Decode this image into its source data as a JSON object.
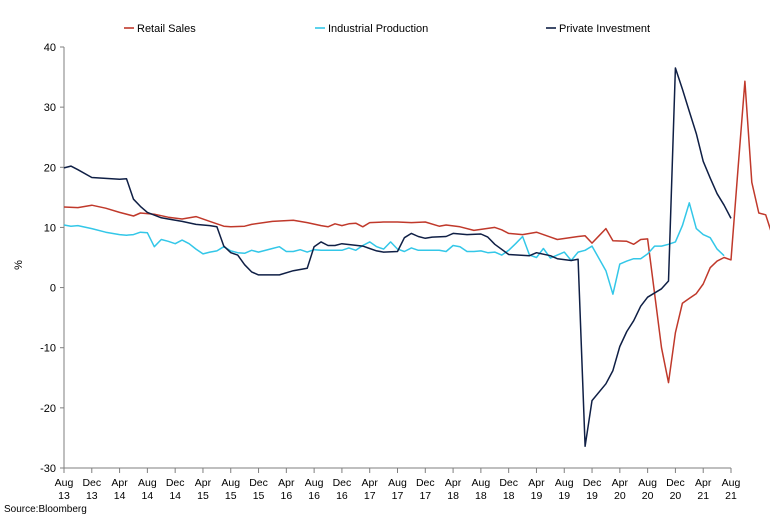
{
  "chart_data": {
    "type": "line",
    "ylabel": "%",
    "ylim": [
      -30,
      40
    ],
    "yticks": [
      -30,
      -20,
      -10,
      0,
      10,
      20,
      30,
      40
    ],
    "x_range": [
      "Aug 13",
      "Aug 21"
    ],
    "xtick_labels": [
      [
        "Aug",
        "13"
      ],
      [
        "Dec",
        "13"
      ],
      [
        "Apr",
        "14"
      ],
      [
        "Aug",
        "14"
      ],
      [
        "Dec",
        "14"
      ],
      [
        "Apr",
        "15"
      ],
      [
        "Aug",
        "15"
      ],
      [
        "Dec",
        "15"
      ],
      [
        "Apr",
        "16"
      ],
      [
        "Aug",
        "16"
      ],
      [
        "Dec",
        "16"
      ],
      [
        "Apr",
        "17"
      ],
      [
        "Aug",
        "17"
      ],
      [
        "Dec",
        "17"
      ],
      [
        "Apr",
        "18"
      ],
      [
        "Aug",
        "18"
      ],
      [
        "Dec",
        "18"
      ],
      [
        "Apr",
        "19"
      ],
      [
        "Aug",
        "19"
      ],
      [
        "Dec",
        "19"
      ],
      [
        "Apr",
        "20"
      ],
      [
        "Aug",
        "20"
      ],
      [
        "Dec",
        "20"
      ],
      [
        "Apr",
        "21"
      ],
      [
        "Aug",
        "21"
      ]
    ],
    "legend_position": "top",
    "grid": false,
    "series": [
      {
        "name": "Retail Sales",
        "color": "#c0392b",
        "points": [
          [
            0,
            13.4
          ],
          [
            2,
            13.3
          ],
          [
            4,
            13.7
          ],
          [
            6,
            13.2
          ],
          [
            8,
            12.5
          ],
          [
            10,
            11.9
          ],
          [
            11,
            12.4
          ],
          [
            13,
            12.2
          ],
          [
            15,
            11.7
          ],
          [
            17,
            11.4
          ],
          [
            19,
            11.8
          ],
          [
            21,
            11
          ],
          [
            23,
            10.2
          ],
          [
            24,
            10.1
          ],
          [
            26,
            10.2
          ],
          [
            27,
            10.5
          ],
          [
            30,
            11
          ],
          [
            33,
            11.2
          ],
          [
            35,
            10.8
          ],
          [
            37,
            10.3
          ],
          [
            38,
            10.1
          ],
          [
            39,
            10.6
          ],
          [
            40,
            10.3
          ],
          [
            41,
            10.6
          ],
          [
            42,
            10.7
          ],
          [
            43,
            10.1
          ],
          [
            44,
            10.8
          ],
          [
            46,
            10.9
          ],
          [
            48,
            10.9
          ],
          [
            50,
            10.8
          ],
          [
            52,
            10.9
          ],
          [
            54,
            10.2
          ],
          [
            55,
            10.4
          ],
          [
            57,
            10.1
          ],
          [
            59,
            9.5
          ],
          [
            62,
            10
          ],
          [
            63,
            9.6
          ],
          [
            64,
            9
          ],
          [
            66,
            8.8
          ],
          [
            68,
            9.2
          ],
          [
            70,
            8.4
          ],
          [
            71,
            8
          ],
          [
            74,
            8.5
          ],
          [
            75,
            8.6
          ],
          [
            76,
            7.4
          ],
          [
            77,
            8.6
          ],
          [
            78,
            9.8
          ],
          [
            79,
            7.8
          ],
          [
            81,
            7.7
          ],
          [
            82,
            7.2
          ],
          [
            83,
            8
          ],
          [
            84,
            8.1
          ],
          [
            85,
            -1
          ],
          [
            86,
            -10
          ],
          [
            87,
            -15.8
          ],
          [
            88,
            -7.5
          ],
          [
            89,
            -2.6
          ],
          [
            90,
            -1.8
          ],
          [
            91,
            -1
          ],
          [
            92,
            0.6
          ],
          [
            93,
            3.3
          ],
          [
            94,
            4.4
          ],
          [
            95,
            5
          ],
          [
            96,
            4.6
          ],
          [
            97,
            19.5
          ],
          [
            98,
            34.3
          ],
          [
            99,
            17.5
          ],
          [
            100,
            12.4
          ],
          [
            101,
            12.1
          ],
          [
            102,
            8.5
          ],
          [
            103,
            2.5
          ]
        ]
      },
      {
        "name": "Industrial Production",
        "color": "#33c7e8",
        "points": [
          [
            0,
            10.4
          ],
          [
            1,
            10.2
          ],
          [
            2,
            10.3
          ],
          [
            4,
            9.8
          ],
          [
            6,
            9.2
          ],
          [
            8,
            8.8
          ],
          [
            9,
            8.7
          ],
          [
            10,
            8.8
          ],
          [
            11,
            9.2
          ],
          [
            12,
            9.1
          ],
          [
            13,
            6.8
          ],
          [
            14,
            8
          ],
          [
            15,
            7.7
          ],
          [
            16,
            7.3
          ],
          [
            17,
            7.9
          ],
          [
            18,
            7.3
          ],
          [
            19,
            6.4
          ],
          [
            20,
            5.6
          ],
          [
            21,
            5.9
          ],
          [
            22,
            6.1
          ],
          [
            23,
            6.8
          ],
          [
            24,
            6.1
          ],
          [
            25,
            5.8
          ],
          [
            26,
            5.7
          ],
          [
            27,
            6.2
          ],
          [
            28,
            5.9
          ],
          [
            30,
            6.5
          ],
          [
            31,
            6.8
          ],
          [
            32,
            6
          ],
          [
            33,
            6
          ],
          [
            34,
            6.3
          ],
          [
            35,
            5.9
          ],
          [
            36,
            6.3
          ],
          [
            37,
            6.2
          ],
          [
            39,
            6.2
          ],
          [
            40,
            6.2
          ],
          [
            41,
            6.6
          ],
          [
            42,
            6.2
          ],
          [
            43,
            7
          ],
          [
            44,
            7.6
          ],
          [
            45,
            6.8
          ],
          [
            46,
            6.4
          ],
          [
            47,
            7.6
          ],
          [
            48,
            6.4
          ],
          [
            49,
            6
          ],
          [
            50,
            6.6
          ],
          [
            51,
            6.2
          ],
          [
            53,
            6.2
          ],
          [
            54,
            6.2
          ],
          [
            55,
            6
          ],
          [
            56,
            7
          ],
          [
            57,
            6.8
          ],
          [
            58,
            6
          ],
          [
            59,
            6
          ],
          [
            60,
            6.1
          ],
          [
            61,
            5.8
          ],
          [
            62,
            5.9
          ],
          [
            63,
            5.4
          ],
          [
            64,
            6.2
          ],
          [
            65,
            7.3
          ],
          [
            66,
            8.5
          ],
          [
            67,
            5.4
          ],
          [
            68,
            5
          ],
          [
            69,
            6.5
          ],
          [
            70,
            4.9
          ],
          [
            71,
            5.4
          ],
          [
            72,
            5.9
          ],
          [
            73,
            4.5
          ],
          [
            74,
            5.9
          ],
          [
            75,
            6.2
          ],
          [
            76,
            6.9
          ],
          [
            78,
            2.8
          ],
          [
            79,
            -1.1
          ],
          [
            80,
            3.9
          ],
          [
            81,
            4.4
          ],
          [
            82,
            4.8
          ],
          [
            83,
            4.8
          ],
          [
            84,
            5.6
          ],
          [
            85,
            6.9
          ],
          [
            86,
            6.9
          ],
          [
            87,
            7.2
          ],
          [
            88,
            7.6
          ],
          [
            89,
            10.3
          ],
          [
            90,
            14.1
          ],
          [
            91,
            9.8
          ],
          [
            92,
            8.8
          ],
          [
            93,
            8.3
          ],
          [
            94,
            6.4
          ],
          [
            95,
            5.3
          ]
        ]
      },
      {
        "name": "Private Investment",
        "color": "#0f1f45",
        "points": [
          [
            0,
            19.9
          ],
          [
            1,
            20.2
          ],
          [
            2,
            19.6
          ],
          [
            4,
            18.3
          ],
          [
            8,
            18
          ],
          [
            9,
            18.1
          ],
          [
            10,
            14.7
          ],
          [
            11,
            13.5
          ],
          [
            12,
            12.5
          ],
          [
            14,
            11.6
          ],
          [
            15,
            11.4
          ],
          [
            17,
            11
          ],
          [
            19,
            10.5
          ],
          [
            21,
            10.3
          ],
          [
            22,
            10.1
          ],
          [
            23,
            6.9
          ],
          [
            24,
            5.8
          ],
          [
            25,
            5.4
          ],
          [
            26,
            3.8
          ],
          [
            27,
            2.6
          ],
          [
            28,
            2.1
          ],
          [
            31,
            2.1
          ],
          [
            33,
            2.8
          ],
          [
            35,
            3.2
          ],
          [
            36,
            6.8
          ],
          [
            37,
            7.6
          ],
          [
            38,
            7
          ],
          [
            39,
            7
          ],
          [
            40,
            7.3
          ],
          [
            43,
            6.9
          ],
          [
            44,
            6.5
          ],
          [
            45,
            6.1
          ],
          [
            46,
            5.9
          ],
          [
            48,
            6
          ],
          [
            49,
            8.3
          ],
          [
            50,
            9
          ],
          [
            51,
            8.5
          ],
          [
            52,
            8.2
          ],
          [
            53,
            8.4
          ],
          [
            55,
            8.5
          ],
          [
            56,
            9
          ],
          [
            58,
            8.8
          ],
          [
            60,
            8.9
          ],
          [
            61,
            8.4
          ],
          [
            62,
            7.2
          ],
          [
            64,
            5.5
          ],
          [
            67,
            5.3
          ],
          [
            68,
            5.8
          ],
          [
            70,
            5.3
          ],
          [
            71,
            4.8
          ],
          [
            73,
            4.5
          ],
          [
            74,
            4.7
          ],
          [
            75,
            -26.4
          ],
          [
            76,
            -18.8
          ],
          [
            78,
            -16
          ],
          [
            79,
            -13.8
          ],
          [
            80,
            -9.8
          ],
          [
            81,
            -7.3
          ],
          [
            82,
            -5.5
          ],
          [
            83,
            -3.1
          ],
          [
            84,
            -1.6
          ],
          [
            86,
            -0.2
          ],
          [
            87,
            1.1
          ],
          [
            88,
            36.5
          ],
          [
            89,
            33
          ],
          [
            90,
            29.3
          ],
          [
            91,
            25.6
          ],
          [
            92,
            21
          ],
          [
            93,
            18.2
          ],
          [
            94,
            15.6
          ],
          [
            95,
            13.7
          ],
          [
            96,
            11.5
          ]
        ]
      }
    ]
  },
  "source": "Source:Bloomberg"
}
